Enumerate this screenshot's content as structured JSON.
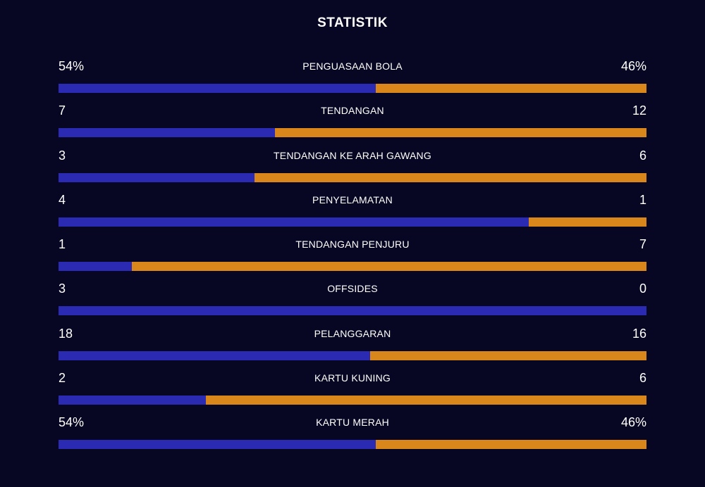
{
  "title": "STATISTIK",
  "colors": {
    "home": "#2a2ab3",
    "away": "#d9861a",
    "background": "#070723"
  },
  "chart_data": {
    "type": "bar",
    "title": "STATISTIK",
    "stats": [
      {
        "label": "PENGUASAAN BOLA",
        "home_text": "54%",
        "away_text": "46%",
        "home": 54,
        "away": 46
      },
      {
        "label": "TENDANGAN",
        "home_text": "7",
        "away_text": "12",
        "home": 7,
        "away": 12
      },
      {
        "label": "TENDANGAN KE ARAH GAWANG",
        "home_text": "3",
        "away_text": "6",
        "home": 3,
        "away": 6
      },
      {
        "label": "PENYELAMATAN",
        "home_text": "4",
        "away_text": "1",
        "home": 4,
        "away": 1
      },
      {
        "label": "TENDANGAN PENJURU",
        "home_text": "1",
        "away_text": "7",
        "home": 1,
        "away": 7
      },
      {
        "label": "OFFSIDES",
        "home_text": "3",
        "away_text": "0",
        "home": 3,
        "away": 0
      },
      {
        "label": "PELANGGARAN",
        "home_text": "18",
        "away_text": "16",
        "home": 18,
        "away": 16
      },
      {
        "label": "KARTU KUNING",
        "home_text": "2",
        "away_text": "6",
        "home": 2,
        "away": 6
      },
      {
        "label": "KARTU MERAH",
        "home_text": "54%",
        "away_text": "46%",
        "home": 54,
        "away": 46
      }
    ]
  }
}
